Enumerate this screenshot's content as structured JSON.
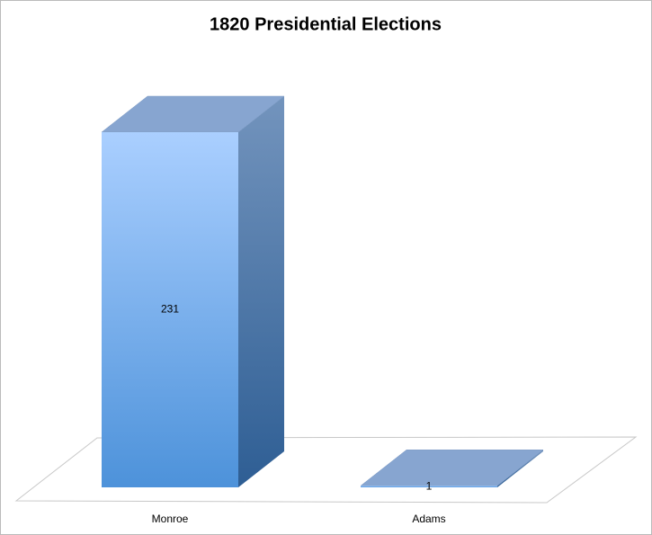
{
  "chart_data": {
    "type": "bar3d",
    "title": "1820 Presidential Elections",
    "categories": [
      "Monroe",
      "Adams"
    ],
    "values": [
      231,
      1
    ]
  }
}
